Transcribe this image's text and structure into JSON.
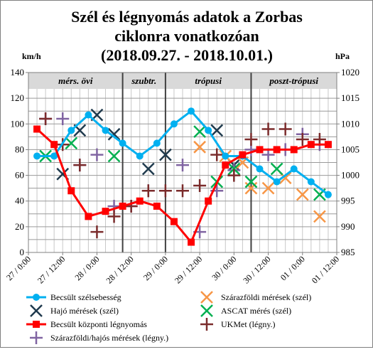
{
  "chart_data": {
    "type": "line",
    "title_lines": [
      "Szél és légnyomás adatok a Zorbas",
      "ciklonra vonatkozóan",
      "(2018.09.27. - 2018.10.01.)"
    ],
    "ylabel_left": "km/h",
    "ylabel_right": "hPa",
    "ylim_left": [
      0,
      140
    ],
    "yticks_left": [
      0,
      20,
      40,
      60,
      80,
      100,
      120,
      140
    ],
    "ylim_right": [
      985,
      1020
    ],
    "yticks_right": [
      985,
      990,
      995,
      1000,
      1005,
      1010,
      1015,
      1020
    ],
    "x_ticks": [
      "27 / 0:00",
      "27 / 12:00",
      "28 / 0:00",
      "28 / 12:00",
      "29 / 0:00",
      "29 / 12:00",
      "30 / 0:00",
      "30 / 12:00",
      "01 / 0:00",
      "01 / 12:00"
    ],
    "x_unit_hours": 12,
    "x_range": [
      0,
      9
    ],
    "grid": true,
    "phases": [
      {
        "label": "mérs. övi",
        "start": 0,
        "end": 2.75
      },
      {
        "label": "szubtr.",
        "start": 2.75,
        "end": 4.0
      },
      {
        "label": "trópusi",
        "start": 4.0,
        "end": 6.5
      },
      {
        "label": "poszt-trópusi",
        "start": 6.5,
        "end": 9.0
      }
    ],
    "series": [
      {
        "name": "Becsült szélsebesség",
        "axis": "left",
        "marker": "circle",
        "line": true,
        "color": "#00b0f0",
        "x": [
          0.25,
          0.75,
          1.25,
          1.75,
          2.25,
          2.75,
          3.25,
          3.75,
          4.25,
          4.75,
          5.25,
          5.75,
          6.25,
          6.75,
          7.25,
          7.75,
          8.25,
          8.75
        ],
        "y": [
          75,
          75,
          95,
          107,
          95,
          85,
          75,
          85,
          100,
          110,
          95,
          75,
          75,
          65,
          55,
          65,
          55,
          45
        ]
      },
      {
        "name": "Hajó mérések (szél)",
        "axis": "left",
        "marker": "x",
        "line": false,
        "color": "#1f3a4d",
        "x": [
          1.0,
          1.5,
          2.0,
          2.5,
          3.5,
          4.0,
          5.5,
          6.0
        ],
        "y": [
          61,
          95,
          107,
          92,
          65,
          76,
          95,
          68
        ]
      },
      {
        "name": "Becsült központi légnyomás",
        "axis": "right",
        "marker": "square",
        "line": true,
        "color": "#ff0000",
        "x": [
          0.25,
          0.75,
          1.25,
          1.75,
          2.25,
          2.75,
          3.25,
          3.75,
          4.25,
          4.75,
          5.25,
          5.75,
          6.25,
          6.75,
          7.25,
          7.75,
          8.25,
          8.75
        ],
        "y": [
          1009,
          1006,
          997,
          992,
          993,
          994,
          995,
          994,
          991,
          987,
          995,
          1002,
          1004,
          1005,
          1005,
          1005,
          1006,
          1006
        ]
      },
      {
        "name": "Szárazföldi/hajós mérések (légny.)",
        "axis": "right",
        "marker": "plus",
        "line": false,
        "color": "#8064a2",
        "x": [
          0.5,
          1.0,
          1.5,
          2.0,
          2.5,
          3.0,
          3.5,
          4.5,
          5.0,
          5.5,
          6.0,
          6.5,
          7.0,
          7.5,
          8.0,
          8.5
        ],
        "y": [
          1011,
          1011,
          1002,
          1004,
          994,
          994,
          997,
          1002,
          989,
          997,
          1001,
          1005,
          1004,
          1005,
          1008,
          1006
        ]
      },
      {
        "name": "Szárazföldi mérések (szél)",
        "axis": "left",
        "marker": "x",
        "line": false,
        "color": "#f79646",
        "x": [
          5.0,
          5.75,
          6.25,
          6.5,
          7.0,
          7.5,
          8.0,
          8.5
        ],
        "y": [
          82,
          75,
          70,
          50,
          50,
          58,
          45,
          28
        ]
      },
      {
        "name": "ASCAT mérés (szél)",
        "axis": "left",
        "marker": "x",
        "line": false,
        "color": "#00b050",
        "x": [
          0.5,
          1.25,
          2.5,
          5.0,
          5.5,
          6.0,
          6.5,
          7.25,
          8.5
        ],
        "y": [
          75,
          85,
          75,
          94,
          55,
          65,
          55,
          65,
          45
        ]
      },
      {
        "name": "UKMet (légny.)",
        "axis": "right",
        "marker": "plus",
        "line": false,
        "color": "#7b2c2c",
        "x": [
          0.5,
          1.0,
          1.5,
          2.0,
          2.5,
          3.0,
          3.5,
          4.0,
          4.5,
          5.0,
          5.5,
          6.0,
          6.5,
          7.0,
          7.5,
          8.0,
          8.5
        ],
        "y": [
          1011,
          1006,
          1002,
          989,
          992,
          994,
          997,
          997,
          997,
          998,
          1004,
          1000,
          1007,
          1009,
          1009,
          1007,
          1007
        ]
      }
    ],
    "legend_position": "bottom"
  }
}
